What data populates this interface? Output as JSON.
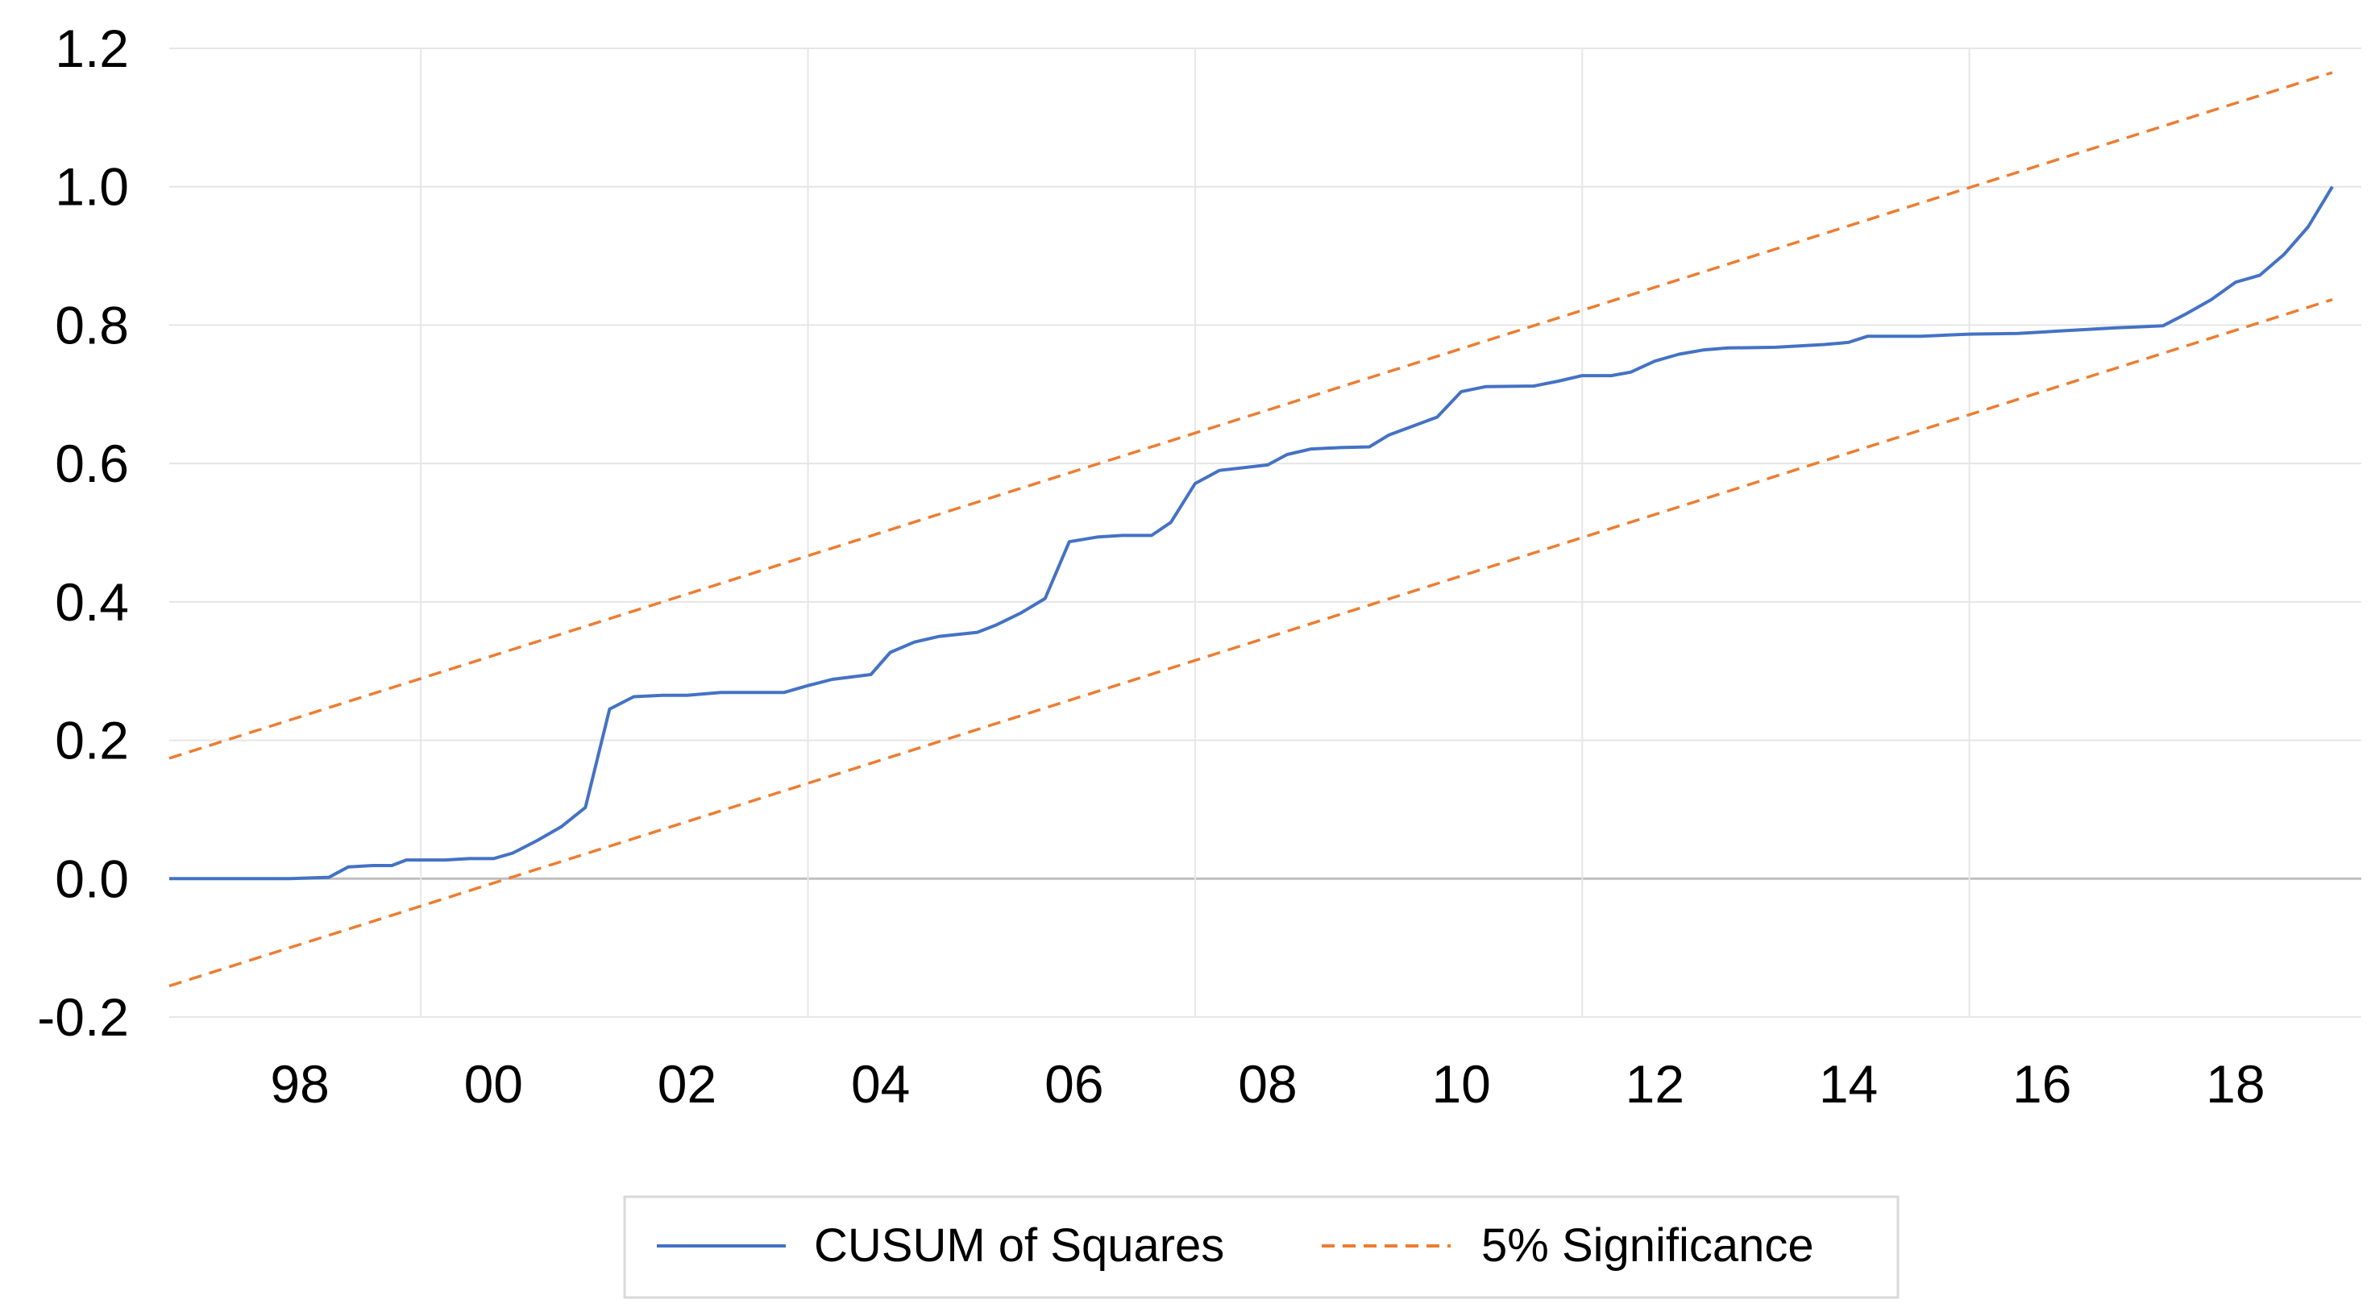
{
  "chart_data": {
    "type": "line",
    "title": "",
    "xlabel": "",
    "ylabel": "",
    "ylim": [
      -0.2,
      1.2
    ],
    "xlim": [
      1996.65,
      2019.3
    ],
    "x_ticks": [
      {
        "label": "98",
        "value": 1998
      },
      {
        "label": "00",
        "value": 2000
      },
      {
        "label": "02",
        "value": 2002
      },
      {
        "label": "04",
        "value": 2004
      },
      {
        "label": "06",
        "value": 2006
      },
      {
        "label": "08",
        "value": 2008
      },
      {
        "label": "10",
        "value": 2010
      },
      {
        "label": "12",
        "value": 2012
      },
      {
        "label": "14",
        "value": 2014
      },
      {
        "label": "16",
        "value": 2016
      },
      {
        "label": "18",
        "value": 2018
      }
    ],
    "x_grid": [
      1999.25,
      2003.25,
      2007.25,
      2011.25,
      2015.25
    ],
    "y_ticks": [
      {
        "label": "1.2",
        "value": 1.2
      },
      {
        "label": "1.0",
        "value": 1.0
      },
      {
        "label": "0.8",
        "value": 0.8
      },
      {
        "label": "0.6",
        "value": 0.6
      },
      {
        "label": "0.4",
        "value": 0.4
      },
      {
        "label": "0.2",
        "value": 0.2
      },
      {
        "label": "0.0",
        "value": 0.0
      },
      {
        "label": "-0.2",
        "value": -0.2
      }
    ],
    "grid": true,
    "legend_position": "bottom",
    "series": [
      {
        "name": "CUSUM of Squares",
        "color": "#4472c4",
        "style": "solid",
        "points": [
          [
            1996.65,
            0.0
          ],
          [
            1997.9,
            0.0
          ],
          [
            1998.3,
            0.002
          ],
          [
            1998.5,
            0.017
          ],
          [
            1998.75,
            0.019
          ],
          [
            1998.95,
            0.019
          ],
          [
            1999.1,
            0.027
          ],
          [
            1999.5,
            0.027
          ],
          [
            1999.75,
            0.029
          ],
          [
            2000.0,
            0.029
          ],
          [
            2000.2,
            0.037
          ],
          [
            2000.45,
            0.055
          ],
          [
            2000.7,
            0.075
          ],
          [
            2000.95,
            0.103
          ],
          [
            2001.2,
            0.245
          ],
          [
            2001.45,
            0.263
          ],
          [
            2001.75,
            0.265
          ],
          [
            2002.0,
            0.265
          ],
          [
            2002.35,
            0.269
          ],
          [
            2003.0,
            0.269
          ],
          [
            2003.25,
            0.279
          ],
          [
            2003.5,
            0.288
          ],
          [
            2003.9,
            0.295
          ],
          [
            2004.1,
            0.327
          ],
          [
            2004.35,
            0.342
          ],
          [
            2004.6,
            0.35
          ],
          [
            2005.0,
            0.356
          ],
          [
            2005.2,
            0.367
          ],
          [
            2005.45,
            0.384
          ],
          [
            2005.7,
            0.405
          ],
          [
            2005.95,
            0.487
          ],
          [
            2006.25,
            0.494
          ],
          [
            2006.5,
            0.496
          ],
          [
            2006.8,
            0.496
          ],
          [
            2007.0,
            0.515
          ],
          [
            2007.25,
            0.571
          ],
          [
            2007.5,
            0.59
          ],
          [
            2008.0,
            0.598
          ],
          [
            2008.2,
            0.613
          ],
          [
            2008.45,
            0.621
          ],
          [
            2008.75,
            0.623
          ],
          [
            2009.05,
            0.624
          ],
          [
            2009.25,
            0.641
          ],
          [
            2009.5,
            0.654
          ],
          [
            2009.75,
            0.667
          ],
          [
            2010.0,
            0.704
          ],
          [
            2010.25,
            0.711
          ],
          [
            2010.75,
            0.712
          ],
          [
            2011.0,
            0.719
          ],
          [
            2011.25,
            0.727
          ],
          [
            2011.55,
            0.727
          ],
          [
            2011.75,
            0.732
          ],
          [
            2012.0,
            0.748
          ],
          [
            2012.25,
            0.758
          ],
          [
            2012.5,
            0.764
          ],
          [
            2012.75,
            0.767
          ],
          [
            2013.25,
            0.768
          ],
          [
            2013.75,
            0.772
          ],
          [
            2014.0,
            0.775
          ],
          [
            2014.2,
            0.784
          ],
          [
            2014.75,
            0.784
          ],
          [
            2015.25,
            0.787
          ],
          [
            2015.75,
            0.788
          ],
          [
            2016.25,
            0.792
          ],
          [
            2016.75,
            0.796
          ],
          [
            2017.25,
            0.799
          ],
          [
            2017.5,
            0.817
          ],
          [
            2017.75,
            0.837
          ],
          [
            2018.0,
            0.862
          ],
          [
            2018.25,
            0.872
          ],
          [
            2018.5,
            0.902
          ],
          [
            2018.75,
            0.942
          ],
          [
            2019.0,
            1.0
          ]
        ]
      },
      {
        "name": "5% Significance",
        "color": "#ed7d31",
        "style": "dashed",
        "points": [
          [
            1996.65,
            0.174
          ],
          [
            2019.0,
            1.165
          ]
        ]
      },
      {
        "name": "",
        "color": "#ed7d31",
        "style": "dashed",
        "points": [
          [
            1996.65,
            -0.155
          ],
          [
            2019.0,
            0.837
          ]
        ]
      }
    ]
  },
  "legend": {
    "items": [
      {
        "label": "CUSUM of Squares",
        "color": "#4472c4",
        "style": "solid"
      },
      {
        "label": "5% Significance",
        "color": "#ed7d31",
        "style": "dashed"
      }
    ]
  }
}
